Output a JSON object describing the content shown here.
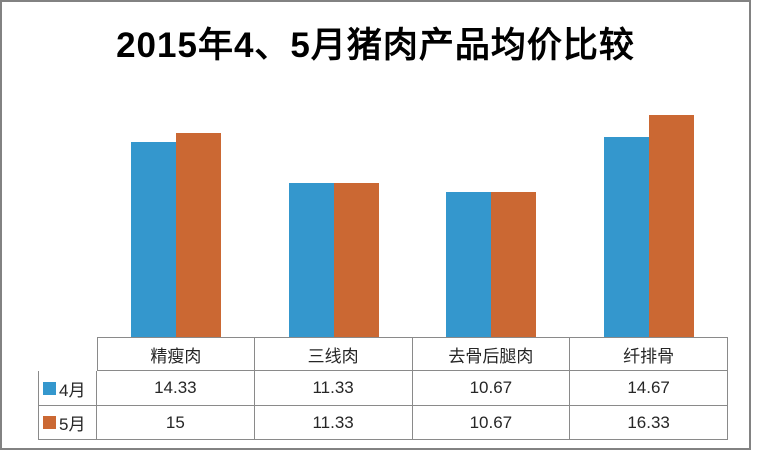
{
  "title": "2015年4、5月猪肉产品均价比较",
  "chart_data": {
    "type": "bar",
    "title": "2015年4、5月猪肉产品均价比较",
    "categories": [
      "精瘦肉",
      "三线肉",
      "去骨后腿肉",
      "纤排骨"
    ],
    "series": [
      {
        "name": "4月",
        "color": "#3497CD",
        "values": [
          14.33,
          11.33,
          10.67,
          14.67
        ],
        "labels": [
          "14.33",
          "11.33",
          "10.67",
          "14.67"
        ]
      },
      {
        "name": "5月",
        "color": "#CB6833",
        "values": [
          15,
          11.33,
          10.67,
          16.33
        ],
        "labels": [
          "15",
          "11.33",
          "10.67",
          "16.33"
        ]
      }
    ],
    "xlabel": "",
    "ylabel": "",
    "ylim": [
      0,
      18
    ],
    "grid": false,
    "axes_shown": false,
    "legend_position": "data-table-left",
    "data_table_shown": true
  }
}
